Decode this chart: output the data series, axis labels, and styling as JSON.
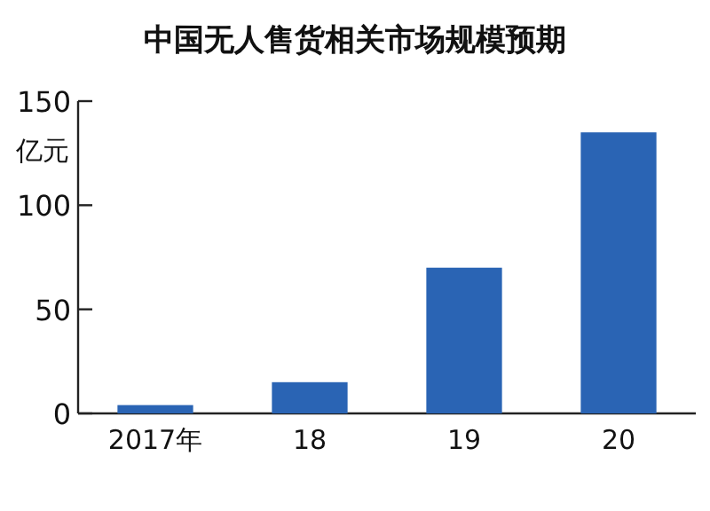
{
  "chart_data": {
    "type": "bar",
    "title": "中国无人售货相关市场规模预期",
    "ylabel": "亿元",
    "categories": [
      "2017年",
      "18",
      "19",
      "20"
    ],
    "values": [
      4,
      15,
      70,
      135
    ],
    "color": "#2a64b4",
    "ylim": [
      0,
      150
    ],
    "yticks": [
      0,
      50,
      100,
      150
    ],
    "grid": false
  }
}
